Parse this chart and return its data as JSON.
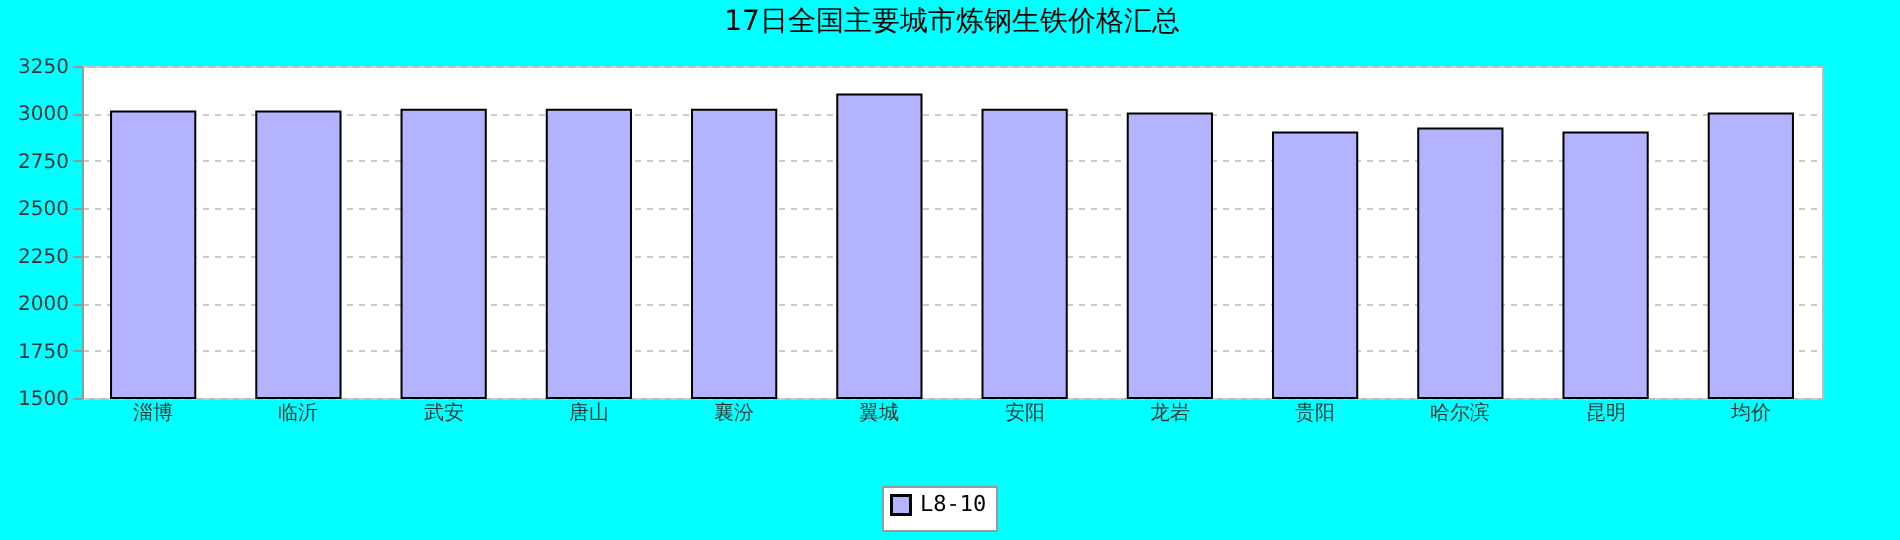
{
  "chart_data": {
    "type": "bar",
    "title": "17日全国主要城市炼钢生铁价格汇总",
    "categories": [
      "淄博",
      "临沂",
      "武安",
      "唐山",
      "襄汾",
      "翼城",
      "安阳",
      "龙岩",
      "贵阳",
      "哈尔滨",
      "昆明",
      "均价"
    ],
    "series": [
      {
        "name": "L8-10",
        "color": "#b3b3ff",
        "values": [
          3010,
          3010,
          3020,
          3020,
          3020,
          3100,
          3020,
          3000,
          2900,
          2920,
          2900,
          3000
        ]
      }
    ],
    "ylim": [
      1500,
      3250
    ],
    "yticks": [
      1500,
      1750,
      2000,
      2250,
      2500,
      2750,
      3000,
      3250
    ],
    "grid": "y",
    "legend": "bottom"
  }
}
